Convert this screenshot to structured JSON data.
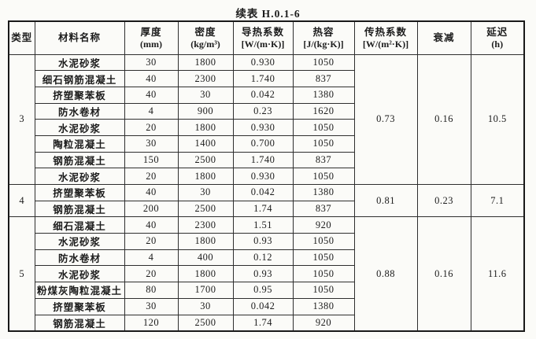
{
  "page": {
    "title": "续表 H.0.1-6"
  },
  "colors": {
    "paper": "#fbfbf8",
    "ink": "#1c1c1c",
    "border": "#2e2e2e"
  },
  "table": {
    "headers": [
      {
        "label": "类型",
        "unit": ""
      },
      {
        "label": "材料名称",
        "unit": ""
      },
      {
        "label": "厚度",
        "unit": "(mm)"
      },
      {
        "label": "密度",
        "unit": "(kg/m³)"
      },
      {
        "label": "导热系数",
        "unit": "[W/(m·K)]"
      },
      {
        "label": "热容",
        "unit": "[J/(kg·K)]"
      },
      {
        "label": "传热系数",
        "unit": "[W/(m²·K)]"
      },
      {
        "label": "衰减",
        "unit": ""
      },
      {
        "label": "延迟",
        "unit": "(h)"
      }
    ],
    "groups": [
      {
        "type": "3",
        "heat_transfer_coefficient": "0.73",
        "attenuation": "0.16",
        "delay": "10.5",
        "rows": [
          {
            "material": "水泥砂浆",
            "thickness": "30",
            "density": "1800",
            "conductivity": "0.930",
            "heat_capacity": "1050"
          },
          {
            "material": "细石钢筋混凝土",
            "thickness": "40",
            "density": "2300",
            "conductivity": "1.740",
            "heat_capacity": "837"
          },
          {
            "material": "挤塑聚苯板",
            "thickness": "40",
            "density": "30",
            "conductivity": "0.042",
            "heat_capacity": "1380"
          },
          {
            "material": "防水卷材",
            "thickness": "4",
            "density": "900",
            "conductivity": "0.23",
            "heat_capacity": "1620"
          },
          {
            "material": "水泥砂浆",
            "thickness": "20",
            "density": "1800",
            "conductivity": "0.930",
            "heat_capacity": "1050"
          },
          {
            "material": "陶粒混凝土",
            "thickness": "30",
            "density": "1400",
            "conductivity": "0.700",
            "heat_capacity": "1050"
          },
          {
            "material": "钢筋混凝土",
            "thickness": "150",
            "density": "2500",
            "conductivity": "1.740",
            "heat_capacity": "837"
          },
          {
            "material": "水泥砂浆",
            "thickness": "20",
            "density": "1800",
            "conductivity": "0.930",
            "heat_capacity": "1050"
          }
        ]
      },
      {
        "type": "4",
        "heat_transfer_coefficient": "0.81",
        "attenuation": "0.23",
        "delay": "7.1",
        "rows": [
          {
            "material": "挤塑聚苯板",
            "thickness": "40",
            "density": "30",
            "conductivity": "0.042",
            "heat_capacity": "1380"
          },
          {
            "material": "钢筋混凝土",
            "thickness": "200",
            "density": "2500",
            "conductivity": "1.74",
            "heat_capacity": "837"
          }
        ]
      },
      {
        "type": "5",
        "heat_transfer_coefficient": "0.88",
        "attenuation": "0.16",
        "delay": "11.6",
        "rows": [
          {
            "material": "细石混凝土",
            "thickness": "40",
            "density": "2300",
            "conductivity": "1.51",
            "heat_capacity": "920"
          },
          {
            "material": "水泥砂浆",
            "thickness": "20",
            "density": "1800",
            "conductivity": "0.93",
            "heat_capacity": "1050"
          },
          {
            "material": "防水卷材",
            "thickness": "4",
            "density": "400",
            "conductivity": "0.12",
            "heat_capacity": "1050"
          },
          {
            "material": "水泥砂浆",
            "thickness": "20",
            "density": "1800",
            "conductivity": "0.93",
            "heat_capacity": "1050"
          },
          {
            "material": "粉煤灰陶粒混凝土",
            "thickness": "80",
            "density": "1700",
            "conductivity": "0.95",
            "heat_capacity": "1050"
          },
          {
            "material": "挤塑聚苯板",
            "thickness": "30",
            "density": "30",
            "conductivity": "0.042",
            "heat_capacity": "1380"
          },
          {
            "material": "钢筋混凝土",
            "thickness": "120",
            "density": "2500",
            "conductivity": "1.74",
            "heat_capacity": "920"
          }
        ]
      }
    ]
  }
}
